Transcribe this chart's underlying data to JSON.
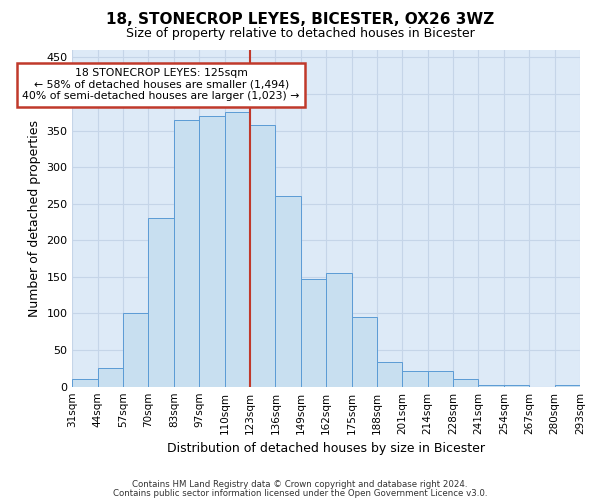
{
  "title": "18, STONECROP LEYES, BICESTER, OX26 3WZ",
  "subtitle": "Size of property relative to detached houses in Bicester",
  "xlabel": "Distribution of detached houses by size in Bicester",
  "ylabel": "Number of detached properties",
  "footer_line1": "Contains HM Land Registry data © Crown copyright and database right 2024.",
  "footer_line2": "Contains public sector information licensed under the Open Government Licence v3.0.",
  "bins": [
    "31sqm",
    "44sqm",
    "57sqm",
    "70sqm",
    "83sqm",
    "97sqm",
    "110sqm",
    "123sqm",
    "136sqm",
    "149sqm",
    "162sqm",
    "175sqm",
    "188sqm",
    "201sqm",
    "214sqm",
    "228sqm",
    "241sqm",
    "254sqm",
    "267sqm",
    "280sqm",
    "293sqm"
  ],
  "values": [
    10,
    25,
    100,
    230,
    365,
    370,
    375,
    358,
    260,
    147,
    155,
    95,
    34,
    22,
    22,
    11,
    2,
    2,
    0,
    2
  ],
  "bar_color": "#c8dff0",
  "bar_edge_color": "#5b9bd5",
  "highlight_bar_index": 7,
  "highlight_line_color": "#c0392b",
  "annotation_title": "18 STONECROP LEYES: 125sqm",
  "annotation_line1": "← 58% of detached houses are smaller (1,494)",
  "annotation_line2": "40% of semi-detached houses are larger (1,023) →",
  "annotation_box_edge": "#c0392b",
  "annotation_box_face": "white",
  "ylim": [
    0,
    460
  ],
  "grid_color": "#c5d5e8",
  "background_color": "#ddeaf7"
}
